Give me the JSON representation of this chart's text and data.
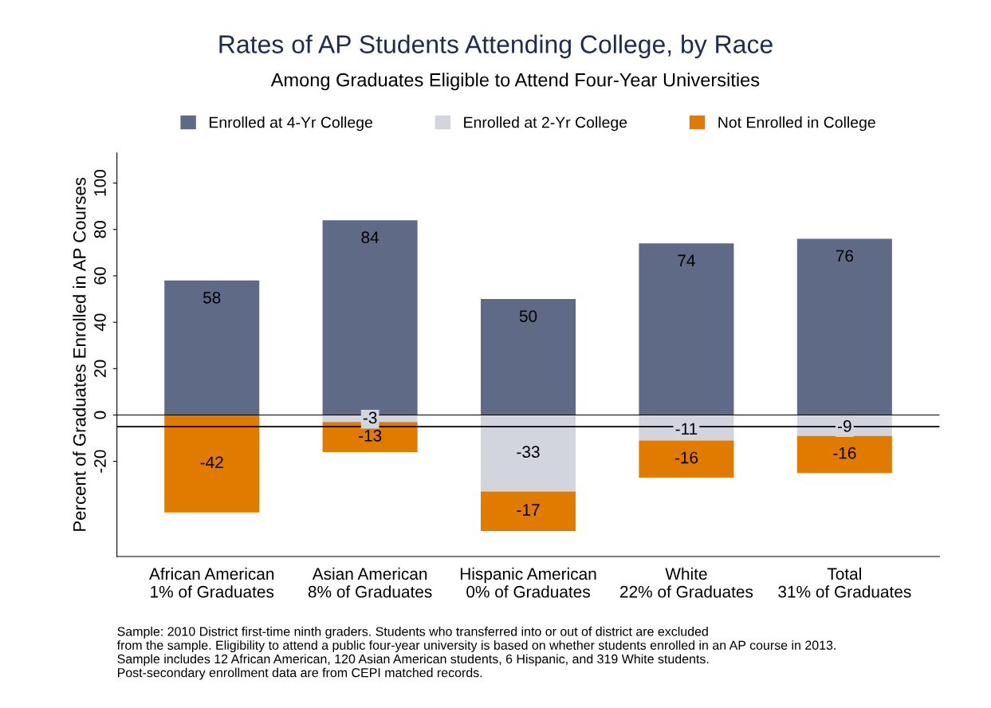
{
  "chart_data": {
    "type": "bar",
    "title": "Rates of AP Students Attending College, by Race",
    "subtitle": "Among Graduates Eligible to Attend Four-Year Universities",
    "ylabel": "Percent of Graduates Enrolled in AP Courses",
    "categories": [
      "African American\n1% of Graduates",
      "Asian American\n8% of Graduates",
      "Hispanic American\n0% of Graduates",
      "White\n22% of Graduates",
      "Total\n31% of Graduates"
    ],
    "stacked": true,
    "series": [
      {
        "name": "Enrolled at 4-Yr College",
        "color": "#5f6a87",
        "values": [
          58,
          84,
          50,
          74,
          76
        ],
        "value_labels": [
          "58",
          "84",
          "50",
          "74",
          "76"
        ]
      },
      {
        "name": "Enrolled at 2-Yr College",
        "color": "#d3d5de",
        "values": [
          0,
          -3,
          -33,
          -11,
          -9
        ],
        "value_labels": [
          null,
          "-3",
          "-33",
          "-11",
          "-9"
        ]
      },
      {
        "name": "Not Enrolled in College",
        "color": "#e07b00",
        "values": [
          -42,
          -13,
          -17,
          -16,
          -16
        ],
        "value_labels": [
          "-42",
          "-13",
          "-17",
          "-16",
          "-16"
        ]
      }
    ],
    "ylim": [
      -61,
      113
    ],
    "yticks": [
      -20,
      0,
      20,
      40,
      60,
      80,
      100
    ],
    "ref_lines": [
      {
        "axis": "y",
        "value": 0,
        "label": null,
        "color": "#000000"
      },
      {
        "axis": "y",
        "value": -5,
        "label": null,
        "color": "#000000"
      }
    ],
    "legend": "top",
    "grid": false,
    "annotations": [
      "Sample: 2010 District first-time ninth graders. Students who transferred into or out of district are excluded\nfrom the sample. Eligibility to attend a public four-year university is based on whether students enrolled in an AP course in 2013.\nSample includes 12 African American, 120 Asian American students, 6 Hispanic, and 319 White students.\nPost-secondary enrollment data are from CEPI matched records."
    ]
  }
}
